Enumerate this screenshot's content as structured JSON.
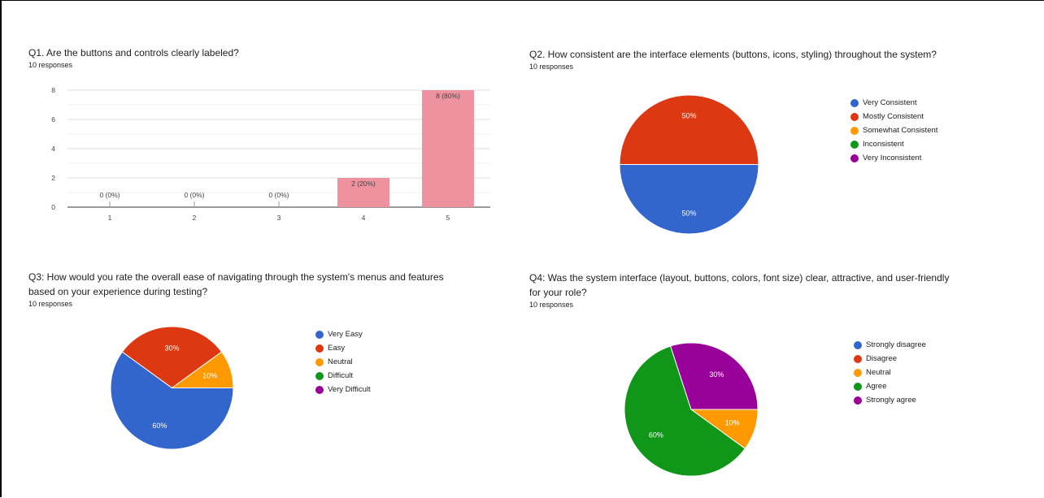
{
  "charts": {
    "q1": {
      "title": "Q1. Are the buttons and controls clearly labeled?",
      "responses": "10 responses"
    },
    "q2": {
      "title": "Q2.  How consistent are the interface elements (buttons, icons, styling) throughout the system?",
      "responses": "10 responses"
    },
    "q3": {
      "title_line1": "Q3: How would you rate the overall ease of navigating through the system's menus and features",
      "title_line2": "based on your experience during testing?",
      "responses": "10 responses"
    },
    "q4": {
      "title_line1": "Q4: Was the system interface (layout, buttons, colors, font size) clear, attractive, and user-friendly",
      "title_line2": "for your role?",
      "responses": "10 responses"
    }
  },
  "chart_data": [
    {
      "type": "bar",
      "title": "Q1. Are the buttons and controls clearly labeled?",
      "categories": [
        "1",
        "2",
        "3",
        "4",
        "5"
      ],
      "values": [
        0,
        0,
        0,
        2,
        8
      ],
      "data_labels": [
        "0 (0%)",
        "0 (0%)",
        "0 (0%)",
        "2 (20%)",
        "8 (80%)"
      ],
      "yticks": [
        "0",
        "2",
        "4",
        "6",
        "8"
      ],
      "ylim": [
        0,
        8
      ],
      "grid": true,
      "bar_color": "#ee929f"
    },
    {
      "type": "pie",
      "title": "Q2.  How consistent are the interface elements (buttons, icons, styling) throughout the system?",
      "labels": [
        "Very Consistent",
        "Mostly Consistent",
        "Somewhat Consistent",
        "Inconsistent",
        "Very Inconsistent"
      ],
      "values": [
        50,
        50,
        0,
        0,
        0
      ],
      "slice_labels": [
        "50%",
        "50%",
        "",
        "",
        ""
      ],
      "colors": [
        "#3366cc",
        "#dc3912",
        "#ff9900",
        "#109618",
        "#990099"
      ],
      "legend": "right"
    },
    {
      "type": "pie",
      "title": "Q3: How would you rate the overall ease of navigating through the system's menus and features based on your experience during testing?",
      "labels": [
        "Very Easy",
        "Easy",
        "Neutral",
        "Difficult",
        "Very Difficult"
      ],
      "values": [
        60,
        30,
        10,
        0,
        0
      ],
      "slice_labels": [
        "60%",
        "30%",
        "10%",
        "",
        ""
      ],
      "colors": [
        "#3366cc",
        "#dc3912",
        "#ff9900",
        "#109618",
        "#990099"
      ],
      "legend": "right"
    },
    {
      "type": "pie",
      "title": "Q4: Was the system interface (layout, buttons, colors, font size) clear, attractive, and user-friendly for your role?",
      "labels": [
        "Strongly disagree",
        "Disagree",
        "Neutral",
        "Agree",
        "Strongly agree"
      ],
      "values": [
        0,
        0,
        10,
        60,
        30
      ],
      "slice_labels": [
        "",
        "",
        "10%",
        "60%",
        "30%"
      ],
      "colors": [
        "#3366cc",
        "#dc3912",
        "#ff9900",
        "#109618",
        "#990099"
      ],
      "legend": "right"
    }
  ]
}
